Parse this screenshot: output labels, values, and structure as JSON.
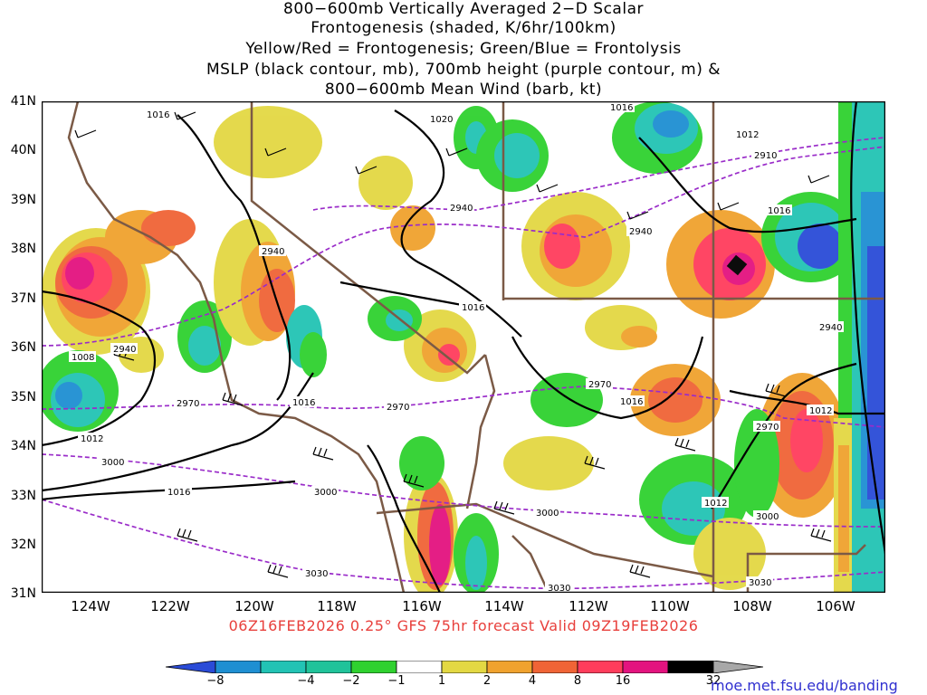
{
  "titles": [
    "800−600mb Vertically Averaged 2−D Scalar",
    "Frontogenesis (shaded, K/6hr/100km)",
    "Yellow/Red = Frontogenesis;  Green/Blue = Frontolysis",
    "MSLP (black contour, mb), 700mb height (purple contour, m) &",
    "800−600mb Mean Wind (barb, kt)"
  ],
  "lat_labels": [
    "41N",
    "40N",
    "39N",
    "38N",
    "37N",
    "36N",
    "35N",
    "34N",
    "33N",
    "32N",
    "31N"
  ],
  "lon_labels": [
    "124W",
    "122W",
    "120W",
    "118W",
    "116W",
    "114W",
    "112W",
    "110W",
    "108W",
    "106W"
  ],
  "forecast_line": "06Z16FEB2026 0.25° GFS 75hr forecast Valid 09Z19FEB2026",
  "credit": "moe.met.fsu.edu/banding",
  "colorbar": {
    "labels": [
      "−8",
      "−4",
      "−2",
      "−1",
      "1",
      "2",
      "4",
      "8",
      "16",
      "32"
    ],
    "colors": [
      "#2a4bd7",
      "#1e8fd2",
      "#22c3b4",
      "#20c39a",
      "#2fd12f",
      "#ffffff",
      "#e3d843",
      "#f0a22e",
      "#f06436",
      "#ff3d5c",
      "#e3137f",
      "#000000",
      "#a8a8a8"
    ]
  },
  "contour_labels": {
    "mslp": [
      "1016",
      "1020",
      "1016",
      "1012",
      "1016",
      "1016",
      "1008",
      "1016",
      "1012",
      "1016",
      "1012",
      "1016",
      "1012"
    ],
    "height": [
      "2910",
      "2940",
      "2940",
      "2940",
      "2940",
      "2940",
      "2970",
      "2970",
      "2970",
      "2970",
      "3000",
      "3000",
      "3000",
      "3000",
      "3030",
      "3030",
      "3030"
    ]
  }
}
